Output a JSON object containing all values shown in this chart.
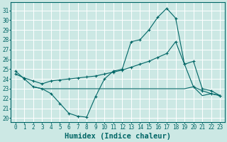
{
  "xlabel": "Humidex (Indice chaleur)",
  "bg_color": "#cce8e4",
  "grid_color": "#ffffff",
  "line_color": "#006666",
  "x_ticks": [
    0,
    1,
    2,
    3,
    4,
    5,
    6,
    7,
    8,
    9,
    10,
    11,
    12,
    13,
    14,
    15,
    16,
    17,
    18,
    19,
    20,
    21,
    22,
    23
  ],
  "y_ticks": [
    20,
    21,
    22,
    23,
    24,
    25,
    26,
    27,
    28,
    29,
    30,
    31
  ],
  "ylim": [
    19.6,
    31.8
  ],
  "xlim": [
    -0.5,
    23.5
  ],
  "line_peak_x": [
    0,
    1,
    2,
    3,
    4,
    5,
    6,
    7,
    8,
    9,
    10,
    11,
    12,
    13,
    14,
    15,
    16,
    17,
    18,
    19,
    20,
    21,
    22,
    23
  ],
  "line_peak_y": [
    24.8,
    24.0,
    23.2,
    23.0,
    22.5,
    21.5,
    20.5,
    20.2,
    20.1,
    22.2,
    24.0,
    24.8,
    25.0,
    27.8,
    28.0,
    29.0,
    30.3,
    31.2,
    30.2,
    25.5,
    23.2,
    22.8,
    22.5,
    22.3
  ],
  "line_flat_x": [
    2,
    3,
    4,
    5,
    6,
    7,
    8,
    9,
    10,
    11,
    12,
    13,
    14,
    15,
    16,
    17,
    18,
    19,
    20,
    21,
    22,
    23
  ],
  "line_flat_y": [
    23.2,
    23.0,
    23.0,
    23.0,
    23.0,
    23.0,
    23.0,
    23.0,
    23.0,
    23.0,
    23.0,
    23.0,
    23.0,
    23.0,
    23.0,
    23.0,
    23.0,
    23.0,
    23.2,
    22.3,
    22.5,
    22.3
  ],
  "line_diag_x": [
    0,
    1,
    2,
    3,
    4,
    5,
    6,
    7,
    8,
    9,
    10,
    11,
    12,
    13,
    14,
    15,
    16,
    17,
    18,
    19,
    20,
    21,
    22,
    23
  ],
  "line_diag_y": [
    24.5,
    24.1,
    23.8,
    23.5,
    23.8,
    23.9,
    24.0,
    24.1,
    24.2,
    24.3,
    24.5,
    24.7,
    24.9,
    25.2,
    25.5,
    25.8,
    26.2,
    26.6,
    27.8,
    25.5,
    25.8,
    23.0,
    22.8,
    22.3
  ],
  "tick_fontsize": 5.5,
  "label_fontsize": 7.5
}
